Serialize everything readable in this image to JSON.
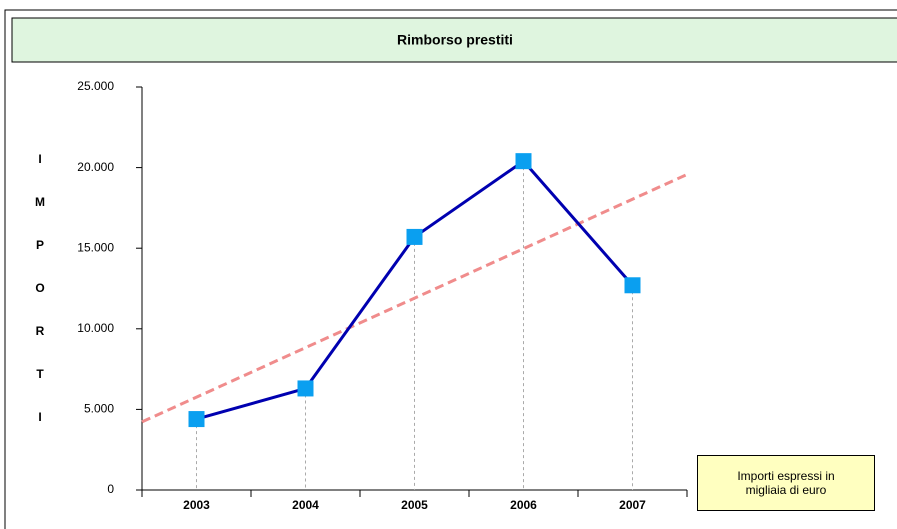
{
  "chart_data": {
    "type": "line",
    "title": "Rimborso prestiti",
    "y_label": "IMPORTI",
    "categories": [
      "2003",
      "2004",
      "2005",
      "2006",
      "2007"
    ],
    "series": [
      {
        "name": "Rimborso prestiti",
        "color": "#0000b0",
        "marker_color": "#0a9ff0",
        "values": [
          4400,
          6300,
          15700,
          20400,
          12700
        ]
      }
    ],
    "trendline": true,
    "trend_color": "#f08c8c",
    "drop_lines": true,
    "ylim": [
      0,
      25000
    ],
    "yticks": [
      0,
      {
        "value": 5000,
        "label": "5.000"
      },
      {
        "value": 10000,
        "label": "10.000"
      },
      {
        "value": 15000,
        "label": "15.000"
      },
      {
        "value": 20000,
        "label": "20.000"
      },
      {
        "value": 25000,
        "label": "25.000"
      }
    ],
    "note": "Importi espressi in migliaia di euro"
  }
}
